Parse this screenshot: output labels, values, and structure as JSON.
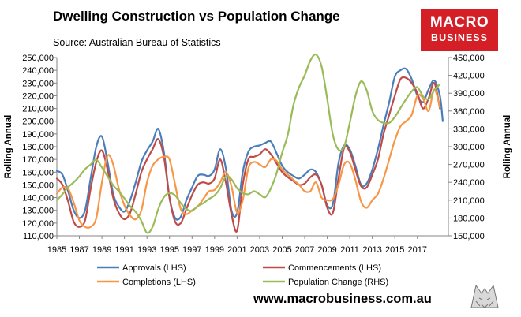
{
  "header": {
    "title": "Dwelling Construction vs Population Change",
    "subtitle": "Source: Australian Bureau of Statistics"
  },
  "logo": {
    "line1": "MACRO",
    "line2": "BUSINESS",
    "color": "#d51f26"
  },
  "footer": {
    "website": "www.macrobusiness.com.au"
  },
  "chart_data": {
    "type": "line",
    "title": "Dwelling Construction vs Population Change",
    "ylabel": "Rolling Annual",
    "y2label": "Rolling Annual",
    "ylim": [
      110000,
      250000
    ],
    "y2lim": [
      150000,
      450000
    ],
    "yticks": [
      "110,000",
      "120,000",
      "130,000",
      "140,000",
      "150,000",
      "160,000",
      "170,000",
      "180,000",
      "190,000",
      "200,000",
      "210,000",
      "220,000",
      "230,000",
      "240,000",
      "250,000"
    ],
    "y2ticks": [
      "150,000",
      "180,000",
      "210,000",
      "240,000",
      "270,000",
      "300,000",
      "330,000",
      "360,000",
      "390,000",
      "420,000",
      "450,000"
    ],
    "xlim": [
      1985,
      2019.75
    ],
    "xticks": [
      "1985",
      "1987",
      "1989",
      "1991",
      "1993",
      "1995",
      "1997",
      "1999",
      "2001",
      "2003",
      "2005",
      "2007",
      "2009",
      "2011",
      "2013",
      "2015",
      "2017"
    ],
    "legend_position": "bottom",
    "grid": false,
    "series": [
      {
        "name": "Approvals (LHS)",
        "axis": "left",
        "color": "#4a7ebb",
        "x": [
          1985,
          1985.5,
          1986,
          1986.5,
          1987,
          1987.5,
          1988,
          1988.5,
          1989,
          1989.5,
          1990,
          1990.5,
          1991,
          1991.5,
          1992,
          1992.5,
          1993,
          1993.5,
          1994,
          1994.5,
          1995,
          1995.5,
          1996,
          1996.5,
          1997,
          1997.5,
          1998,
          1998.5,
          1999,
          1999.5,
          2000,
          2000.5,
          2001,
          2001.5,
          2002,
          2002.5,
          2003,
          2003.5,
          2004,
          2004.5,
          2005,
          2005.5,
          2006,
          2006.5,
          2007,
          2007.5,
          2008,
          2008.5,
          2009,
          2009.5,
          2010,
          2010.5,
          2011,
          2011.5,
          2012,
          2012.5,
          2013,
          2013.5,
          2014,
          2014.5,
          2015,
          2015.5,
          2016,
          2016.5,
          2017,
          2017.5,
          2018,
          2018.5,
          2019,
          2019.25
        ],
        "y": [
          161000,
          158000,
          145000,
          130000,
          124000,
          130000,
          155000,
          180000,
          188000,
          168000,
          143000,
          133000,
          129000,
          138000,
          152000,
          168000,
          177000,
          184000,
          194000,
          176000,
          140000,
          124000,
          125000,
          138000,
          148000,
          157000,
          158000,
          157000,
          162000,
          178000,
          163000,
          130000,
          128000,
          160000,
          176000,
          180000,
          181000,
          183000,
          184000,
          175000,
          165000,
          160000,
          157000,
          155000,
          158000,
          162000,
          160000,
          150000,
          134000,
          135000,
          167000,
          181000,
          178000,
          165000,
          150000,
          151000,
          162000,
          178000,
          197000,
          215000,
          235000,
          240000,
          241000,
          233000,
          220000,
          215000,
          225000,
          232000,
          220000,
          200000
        ]
      },
      {
        "name": "Commencements (LHS)",
        "axis": "left",
        "color": "#be4b48",
        "x": [
          1985,
          1985.5,
          1986,
          1986.5,
          1987,
          1987.5,
          1988,
          1988.5,
          1989,
          1989.5,
          1990,
          1990.5,
          1991,
          1991.5,
          1992,
          1992.5,
          1993,
          1993.5,
          1994,
          1994.5,
          1995,
          1995.5,
          1996,
          1996.5,
          1997,
          1997.5,
          1998,
          1998.5,
          1999,
          1999.5,
          2000,
          2000.5,
          2001,
          2001.5,
          2002,
          2002.5,
          2003,
          2003.5,
          2004,
          2004.5,
          2005,
          2005.5,
          2006,
          2006.5,
          2007,
          2007.5,
          2008,
          2008.5,
          2009,
          2009.5,
          2010,
          2010.5,
          2011,
          2011.5,
          2012,
          2012.5,
          2013,
          2013.5,
          2014,
          2014.5,
          2015,
          2015.5,
          2016,
          2016.5,
          2017,
          2017.5,
          2018,
          2018.5,
          2019
        ],
        "y": [
          155000,
          150000,
          137000,
          121000,
          117000,
          122000,
          147000,
          168000,
          177000,
          162000,
          140000,
          128000,
          123000,
          128000,
          143000,
          160000,
          170000,
          178000,
          186000,
          172000,
          140000,
          121000,
          120000,
          131000,
          142000,
          150000,
          152000,
          151000,
          155000,
          170000,
          152000,
          127000,
          114000,
          150000,
          170000,
          172000,
          174000,
          178000,
          174000,
          167000,
          160000,
          156000,
          153000,
          150000,
          151000,
          156000,
          158000,
          150000,
          132000,
          128000,
          155000,
          179000,
          176000,
          162000,
          149000,
          148000,
          158000,
          170000,
          190000,
          205000,
          220000,
          233000,
          234000,
          230000,
          222000,
          210000,
          218000,
          230000,
          210000
        ]
      },
      {
        "name": "Completions (LHS)",
        "axis": "left",
        "color": "#f79646",
        "x": [
          1985,
          1985.5,
          1986,
          1986.5,
          1987,
          1987.5,
          1988,
          1988.5,
          1989,
          1989.5,
          1990,
          1990.5,
          1991,
          1991.5,
          1992,
          1992.5,
          1993,
          1993.5,
          1994,
          1994.5,
          1995,
          1995.5,
          1996,
          1996.5,
          1997,
          1997.5,
          1998,
          1998.5,
          1999,
          1999.5,
          2000,
          2000.5,
          2001,
          2001.5,
          2002,
          2002.5,
          2003,
          2003.5,
          2004,
          2004.5,
          2005,
          2005.5,
          2006,
          2006.5,
          2007,
          2007.5,
          2008,
          2008.5,
          2009,
          2009.5,
          2010,
          2010.5,
          2011,
          2011.5,
          2012,
          2012.5,
          2013,
          2013.5,
          2014,
          2014.5,
          2015,
          2015.5,
          2016,
          2016.5,
          2017,
          2017.5,
          2018,
          2018.5,
          2019
        ],
        "y": [
          143000,
          148000,
          147000,
          136000,
          122000,
          117000,
          117000,
          124000,
          152000,
          173000,
          166000,
          147000,
          134000,
          126000,
          123000,
          130000,
          152000,
          165000,
          170000,
          172000,
          170000,
          150000,
          131000,
          127000,
          130000,
          133000,
          139000,
          145000,
          146000,
          152000,
          160000,
          149000,
          128000,
          138000,
          163000,
          168000,
          166000,
          164000,
          170000,
          169000,
          162000,
          158000,
          154000,
          150000,
          145000,
          145000,
          152000,
          140000,
          138000,
          139000,
          150000,
          166000,
          167000,
          154000,
          137000,
          132000,
          138000,
          143000,
          155000,
          170000,
          185000,
          196000,
          200000,
          205000,
          220000,
          218000,
          208000,
          225000,
          211000
        ]
      },
      {
        "name": "Population Change (RHS)",
        "axis": "right",
        "color": "#9bbb59",
        "x": [
          1985,
          1985.5,
          1986,
          1986.5,
          1987,
          1987.5,
          1988,
          1988.5,
          1989,
          1989.5,
          1990,
          1990.5,
          1991,
          1991.5,
          1992,
          1992.5,
          1993,
          1993.5,
          1994,
          1994.5,
          1995,
          1995.5,
          1996,
          1996.5,
          1997,
          1997.5,
          1998,
          1998.5,
          1999,
          1999.5,
          2000,
          2000.5,
          2001,
          2001.5,
          2002,
          2002.5,
          2003,
          2003.5,
          2004,
          2004.5,
          2005,
          2005.5,
          2006,
          2006.5,
          2007,
          2007.5,
          2008,
          2008.5,
          2009,
          2009.5,
          2010,
          2010.5,
          2011,
          2011.5,
          2012,
          2012.5,
          2013,
          2013.5,
          2014,
          2014.5,
          2015,
          2015.5,
          2016,
          2016.5,
          2017,
          2017.5,
          2018,
          2018.5,
          2019
        ],
        "y": [
          210000,
          220000,
          232000,
          240000,
          250000,
          262000,
          270000,
          278000,
          265000,
          250000,
          235000,
          225000,
          213000,
          200000,
          190000,
          175000,
          155000,
          165000,
          195000,
          215000,
          222000,
          218000,
          205000,
          195000,
          192000,
          200000,
          205000,
          212000,
          218000,
          230000,
          250000,
          245000,
          230000,
          222000,
          220000,
          225000,
          220000,
          215000,
          230000,
          255000,
          290000,
          320000,
          370000,
          400000,
          420000,
          445000,
          455000,
          435000,
          380000,
          320000,
          295000,
          300000,
          340000,
          385000,
          410000,
          395000,
          360000,
          345000,
          340000,
          340000,
          350000,
          365000,
          380000,
          393000,
          400000,
          385000,
          380000,
          395000,
          405000
        ]
      }
    ]
  }
}
